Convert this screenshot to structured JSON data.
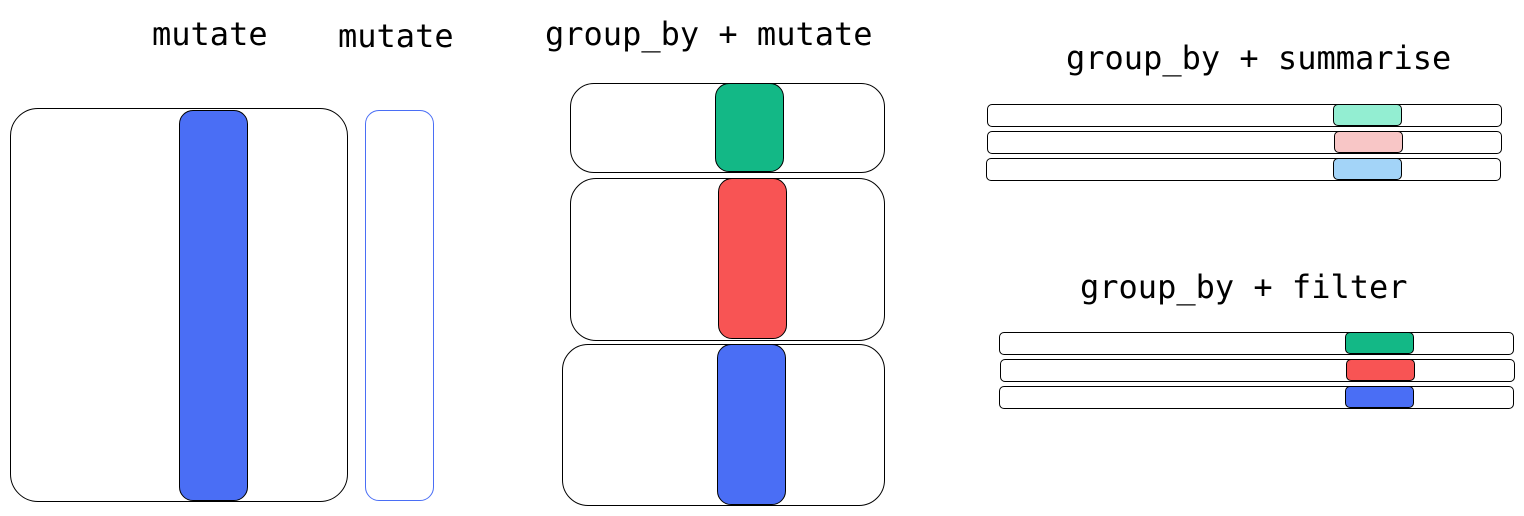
{
  "panels": {
    "mutate_1": {
      "title": "mutate"
    },
    "mutate_2": {
      "title": "mutate"
    },
    "group_by_mutate": {
      "title": "group_by + mutate"
    },
    "group_by_summarise": {
      "title": "group_by + summarise"
    },
    "group_by_filter": {
      "title": "group_by + filter"
    }
  },
  "colors": {
    "blue": "#4a6ef5",
    "green": "#13b886",
    "red": "#f85454",
    "light_green": "#93eed2",
    "light_red": "#f8c6c6",
    "light_blue": "#a3d4f8",
    "outline_blue": "#4a6ef5"
  }
}
